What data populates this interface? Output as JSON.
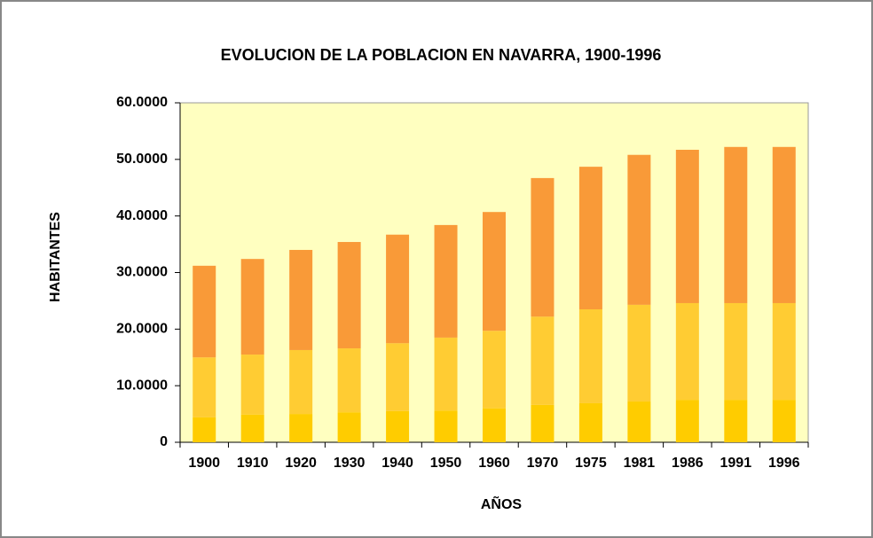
{
  "chart_data": {
    "type": "stacked_bar",
    "title": "EVOLUCION DE LA POBLACION EN NAVARRA, 1900-1996",
    "x_label": "AÑOS",
    "y_label": "HABITANTES",
    "categories": [
      "1900",
      "1910",
      "1920",
      "1930",
      "1940",
      "1950",
      "1960",
      "1970",
      "1975",
      "1981",
      "1986",
      "1991",
      "1996"
    ],
    "series": [
      {
        "color": "#ffcc00",
        "values": [
          4.4,
          4.9,
          5.0,
          5.3,
          5.5,
          5.6,
          6.0,
          6.6,
          6.9,
          7.2,
          7.5,
          7.5,
          7.5
        ]
      },
      {
        "color": "#ffcc33",
        "values": [
          10.6,
          10.6,
          11.3,
          11.3,
          12.0,
          12.9,
          13.7,
          15.6,
          16.6,
          17.1,
          17.1,
          17.1,
          17.1
        ]
      },
      {
        "color": "#f99a38",
        "values": [
          16.2,
          16.9,
          17.7,
          18.8,
          19.2,
          19.9,
          21.0,
          24.5,
          25.2,
          26.5,
          27.1,
          27.6,
          27.6
        ]
      }
    ],
    "ylim": [
      0,
      60
    ],
    "yticks": [
      0,
      {
        "value": 10,
        "label": "10.0000"
      },
      {
        "value": 20,
        "label": "20.0000"
      },
      {
        "value": 30,
        "label": "30.0000"
      },
      {
        "value": 40,
        "label": "40.0000"
      },
      {
        "value": 50,
        "label": "50.0000"
      },
      {
        "value": 60,
        "label": "60.0000"
      }
    ],
    "plot_background": "#ffffc0"
  }
}
